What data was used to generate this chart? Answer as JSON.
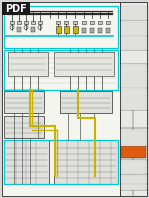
{
  "bg_color": "#d8d8d8",
  "paper_color": "#f5f5f0",
  "pdf_badge_color": "#1a1a1a",
  "pdf_text_color": "#ffffff",
  "cyan_color": "#00c8d4",
  "yellow_color": "#c8b400",
  "orange_color": "#e05a10",
  "dark_color": "#2a2a2a",
  "mid_gray": "#888888",
  "light_gray": "#bbbbbb",
  "comp_gray": "#999999",
  "wire_gray": "#555555",
  "sidebar_color": "#e8e8e4",
  "figsize": [
    1.49,
    1.98
  ],
  "dpi": 100
}
